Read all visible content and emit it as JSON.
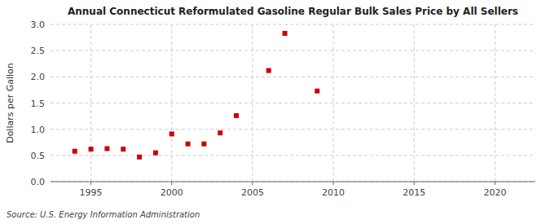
{
  "chart_data": {
    "type": "scatter",
    "title": "Annual Connecticut Reformulated Gasoline Regular Bulk Sales Price by All Sellers",
    "y_label": "Dollars per Gallon",
    "source": "Source: U.S. Energy Information Administration",
    "x": [
      1994,
      1995,
      1996,
      1997,
      1998,
      1999,
      2000,
      2001,
      2002,
      2003,
      2004,
      2006,
      2007,
      2009
    ],
    "values": [
      0.58,
      0.62,
      0.63,
      0.62,
      0.47,
      0.55,
      0.91,
      0.72,
      0.72,
      0.93,
      1.26,
      2.12,
      2.83,
      1.73
    ],
    "color": "#cc0000",
    "marker": "square",
    "xlim": [
      1992.5,
      2022.5
    ],
    "ylim": [
      0.0,
      3.0
    ],
    "xticks": [
      1995,
      2000,
      2005,
      2010,
      2015,
      2020
    ],
    "yticks": [
      {
        "value": 0,
        "label": "0.0"
      },
      0.5,
      {
        "value": 1,
        "label": "1.0"
      },
      1.5,
      {
        "value": 2,
        "label": "2.0"
      },
      2.5,
      {
        "value": 3,
        "label": "3.0"
      }
    ],
    "grid": true
  }
}
